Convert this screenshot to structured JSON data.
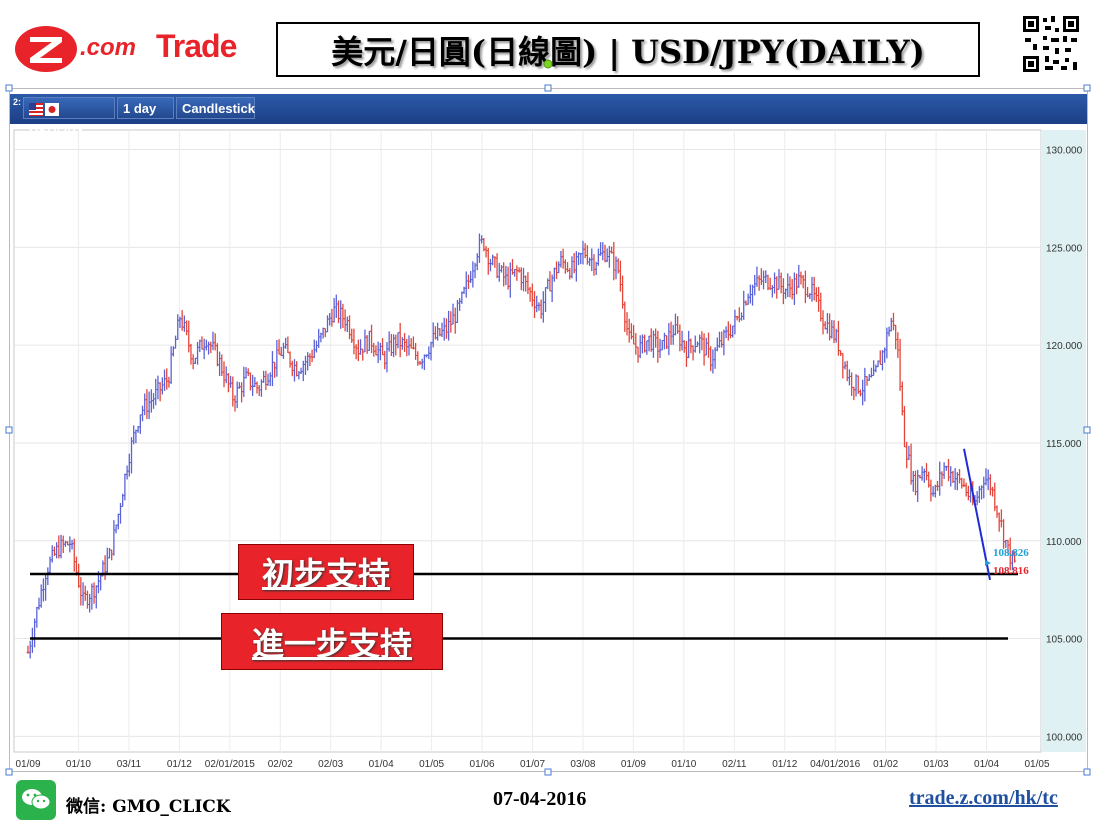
{
  "header": {
    "logo_dotcom": ".com",
    "logo_trade": "Trade",
    "title": "美元/日圓(日線圖) | USD/JPY(DAILY)"
  },
  "toolbar": {
    "index": "2:",
    "symbol": "USD/JPY",
    "interval": "1 day",
    "chart_style": "Candlestick"
  },
  "colors": {
    "up": "#5a63d8",
    "down": "#e2463a",
    "toolbar": "#1c3f86",
    "label_bg": "#e8232a",
    "bid_label": "#1d9fd8",
    "ask_label": "#e8232a"
  },
  "chart_data": {
    "type": "candlestick",
    "ylim": [
      99.2,
      131.0
    ],
    "yticks": [
      "130.000",
      "125.000",
      "120.000",
      "115.000",
      "110.000",
      "105.000",
      "100.000"
    ],
    "ytick_values": [
      130,
      125,
      120,
      115,
      110,
      105,
      100
    ],
    "xticks": [
      "01/09",
      "01/10",
      "03/11",
      "01/12",
      "02/01/2015",
      "02/02",
      "02/03",
      "01/04",
      "01/05",
      "01/06",
      "01/07",
      "03/08",
      "01/09",
      "01/10",
      "02/11",
      "01/12",
      "04/01/2016",
      "01/02",
      "01/03",
      "01/04",
      "01/05"
    ],
    "price_path": [
      [
        0,
        104.3
      ],
      [
        6,
        105.8
      ],
      [
        18,
        108.5
      ],
      [
        30,
        109.6
      ],
      [
        42,
        109.9
      ],
      [
        55,
        106.9
      ],
      [
        68,
        107.7
      ],
      [
        82,
        109.3
      ],
      [
        90,
        111.3
      ],
      [
        100,
        114.2
      ],
      [
        112,
        116.6
      ],
      [
        125,
        117.3
      ],
      [
        140,
        118.3
      ],
      [
        152,
        121.5
      ],
      [
        165,
        119.3
      ],
      [
        178,
        120.4
      ],
      [
        190,
        119.3
      ],
      [
        205,
        117.3
      ],
      [
        218,
        118.3
      ],
      [
        230,
        117.8
      ],
      [
        242,
        118.8
      ],
      [
        255,
        119.8
      ],
      [
        268,
        118.8
      ],
      [
        280,
        119.3
      ],
      [
        292,
        120.3
      ],
      [
        305,
        121.8
      ],
      [
        318,
        121.3
      ],
      [
        330,
        119.8
      ],
      [
        342,
        120.3
      ],
      [
        355,
        119.3
      ],
      [
        368,
        120.3
      ],
      [
        380,
        119.8
      ],
      [
        392,
        119.3
      ],
      [
        405,
        120.3
      ],
      [
        418,
        120.8
      ],
      [
        430,
        121.8
      ],
      [
        440,
        123.3
      ],
      [
        448,
        124.8
      ],
      [
        455,
        125.3
      ],
      [
        462,
        124.3
      ],
      [
        470,
        123.8
      ],
      [
        478,
        123.3
      ],
      [
        490,
        123.8
      ],
      [
        500,
        122.8
      ],
      [
        512,
        121.8
      ],
      [
        522,
        123.3
      ],
      [
        532,
        124.3
      ],
      [
        545,
        123.8
      ],
      [
        555,
        124.8
      ],
      [
        565,
        124.3
      ],
      [
        578,
        124.8
      ],
      [
        590,
        123.8
      ],
      [
        600,
        120.3
      ],
      [
        610,
        119.8
      ],
      [
        620,
        120.3
      ],
      [
        632,
        119.8
      ],
      [
        645,
        120.8
      ],
      [
        658,
        119.8
      ],
      [
        670,
        120.3
      ],
      [
        682,
        119.3
      ],
      [
        695,
        120.3
      ],
      [
        708,
        121.3
      ],
      [
        720,
        122.8
      ],
      [
        732,
        123.3
      ],
      [
        745,
        123.3
      ],
      [
        758,
        122.8
      ],
      [
        770,
        123.3
      ],
      [
        782,
        122.8
      ],
      [
        795,
        121.3
      ],
      [
        808,
        120.3
      ],
      [
        820,
        118.3
      ],
      [
        832,
        117.8
      ],
      [
        845,
        118.3
      ],
      [
        855,
        119.8
      ],
      [
        862,
        121.3
      ],
      [
        868,
        120.3
      ],
      [
        875,
        115.3
      ],
      [
        885,
        112.8
      ],
      [
        895,
        113.8
      ],
      [
        905,
        112.3
      ],
      [
        915,
        113.8
      ],
      [
        925,
        113.3
      ],
      [
        935,
        112.8
      ],
      [
        945,
        111.8
      ],
      [
        955,
        113.3
      ],
      [
        962,
        112.8
      ],
      [
        970,
        111.3
      ],
      [
        980,
        109.3
      ],
      [
        986,
        108.8
      ]
    ],
    "last_bid": "108.826",
    "last_ask": "108.816",
    "annotations": [
      {
        "label": "初步支持",
        "level": 108.3
      },
      {
        "label": "進一步支持",
        "level": 105.0
      }
    ],
    "trendline": {
      "from": [
        964,
        114.7
      ],
      "to": [
        990,
        108.0
      ]
    }
  },
  "footer": {
    "wechat_label": "微信: GMO_CLICK",
    "date": "07-04-2016",
    "url": "trade.z.com/hk/tc"
  }
}
